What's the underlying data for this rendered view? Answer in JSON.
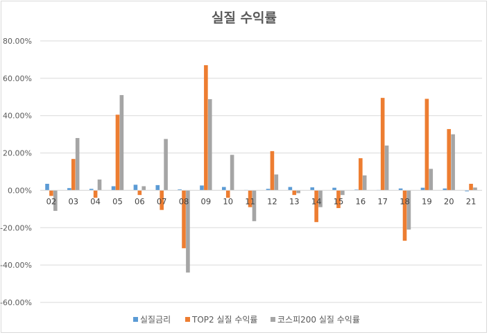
{
  "chart_data": {
    "type": "bar",
    "title": "실질 수익률",
    "xlabel": "",
    "ylabel": "",
    "ylim": [
      -0.6,
      0.8
    ],
    "ytick_step": 0.2,
    "ytick_labels": [
      "80.00%",
      "60.00%",
      "40.00%",
      "20.00%",
      "0.00%",
      "-20.00%",
      "-40.00%",
      "-60.00%"
    ],
    "grid": true,
    "legend_position": "bottom",
    "categories": [
      "02",
      "03",
      "04",
      "05",
      "06",
      "07",
      "08",
      "09",
      "10",
      "11",
      "12",
      "13",
      "14",
      "15",
      "16",
      "17",
      "18",
      "19",
      "20",
      "21"
    ],
    "series": [
      {
        "name": "실질금리",
        "color": "#5b9bd5",
        "values": [
          0.035,
          0.012,
          0.008,
          0.022,
          0.03,
          0.028,
          0.005,
          0.026,
          0.018,
          0.002,
          0.008,
          0.018,
          0.016,
          0.014,
          0.004,
          0.002,
          0.01,
          0.014,
          0.01,
          -0.005
        ]
      },
      {
        "name": "TOP2 실질 수익률",
        "color": "#ed7d31",
        "values": [
          -0.03,
          0.168,
          -0.04,
          0.405,
          -0.025,
          -0.105,
          -0.31,
          0.67,
          -0.04,
          -0.09,
          0.21,
          -0.025,
          -0.17,
          -0.095,
          0.172,
          0.495,
          -0.27,
          0.49,
          0.328,
          0.035
        ]
      },
      {
        "name": "코스피200 실질 수익률",
        "color": "#a5a5a5",
        "values": [
          -0.11,
          0.28,
          0.058,
          0.51,
          0.022,
          0.275,
          -0.44,
          0.488,
          0.19,
          -0.165,
          0.085,
          -0.015,
          -0.09,
          -0.025,
          0.08,
          0.24,
          -0.21,
          0.115,
          0.3,
          0.015
        ]
      }
    ]
  }
}
